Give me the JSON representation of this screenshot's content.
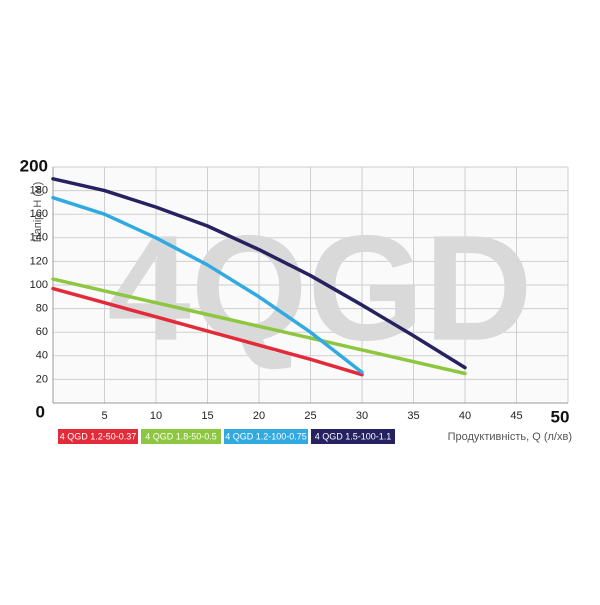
{
  "chart_data": {
    "type": "line",
    "watermark": "4QGD",
    "y_label": "Напір, Н (м)",
    "x_label": "Продуктивність, Q (л/хв)",
    "xlim": [
      0,
      50
    ],
    "ylim": [
      0,
      200
    ],
    "xticks": [
      5,
      10,
      15,
      20,
      25,
      30,
      35,
      40,
      45,
      50
    ],
    "yticks": [
      0,
      20,
      40,
      60,
      80,
      100,
      120,
      140,
      160,
      180,
      200
    ],
    "grid": true,
    "series": [
      {
        "name": "4 QGD 1.2-50-0.37",
        "color": "#e32a38",
        "x": [
          0,
          5,
          10,
          15,
          20,
          25,
          30
        ],
        "values": [
          97,
          85,
          73,
          61,
          49,
          37,
          24
        ]
      },
      {
        "name": "4 QGD 1.8-50-0.5",
        "color": "#8dc63f",
        "x": [
          0,
          5,
          10,
          15,
          20,
          25,
          30,
          35,
          40
        ],
        "values": [
          105,
          95,
          85,
          75,
          65,
          55,
          45,
          35,
          25
        ]
      },
      {
        "name": "4 QGD 1.2-100-0.75",
        "color": "#31a9e1",
        "x": [
          0,
          5,
          10,
          15,
          20,
          25,
          30
        ],
        "values": [
          174,
          160,
          140,
          117,
          90,
          60,
          26
        ]
      },
      {
        "name": "4 QGD 1.5-100-1.1",
        "color": "#262262",
        "x": [
          0,
          5,
          10,
          15,
          20,
          25,
          30,
          35,
          40
        ],
        "values": [
          190,
          180,
          166,
          150,
          130,
          108,
          83,
          57,
          30
        ]
      }
    ]
  }
}
